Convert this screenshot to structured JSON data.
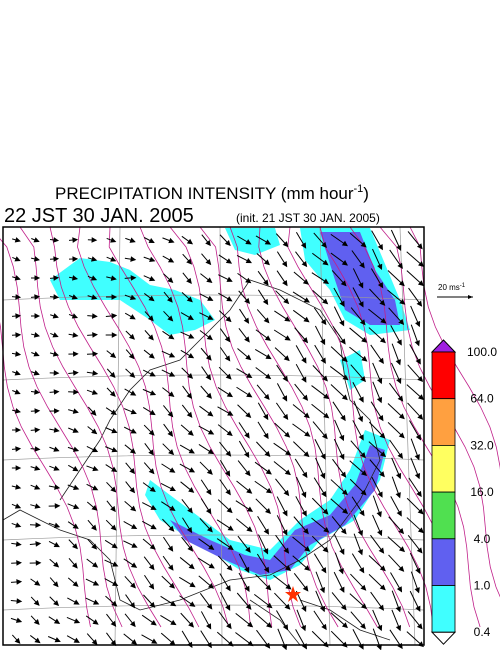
{
  "title": {
    "main": "PRECIPITATION INTENSITY (mm hour",
    "exponent": "-1",
    "close": ")"
  },
  "subtitle": {
    "time": "22 JST 30 JAN. 2005",
    "init": "(init. 21 JST 30 JAN. 2005)"
  },
  "reference_vector": {
    "label": "20 ms",
    "exponent": "-1"
  },
  "legend": {
    "levels": [
      {
        "label": "100.0",
        "color": "#ff0000"
      },
      {
        "label": "64.0",
        "color": "#ffa040"
      },
      {
        "label": "32.0",
        "color": "#ffff60"
      },
      {
        "label": "16.0",
        "color": "#50e050"
      },
      {
        "label": "4.0",
        "color": "#6060f0"
      },
      {
        "label": "1.0",
        "color": "#40ffff"
      },
      {
        "label": "0.4",
        "color": "#ffffff"
      }
    ],
    "over_color": "#a020e0"
  }
}
